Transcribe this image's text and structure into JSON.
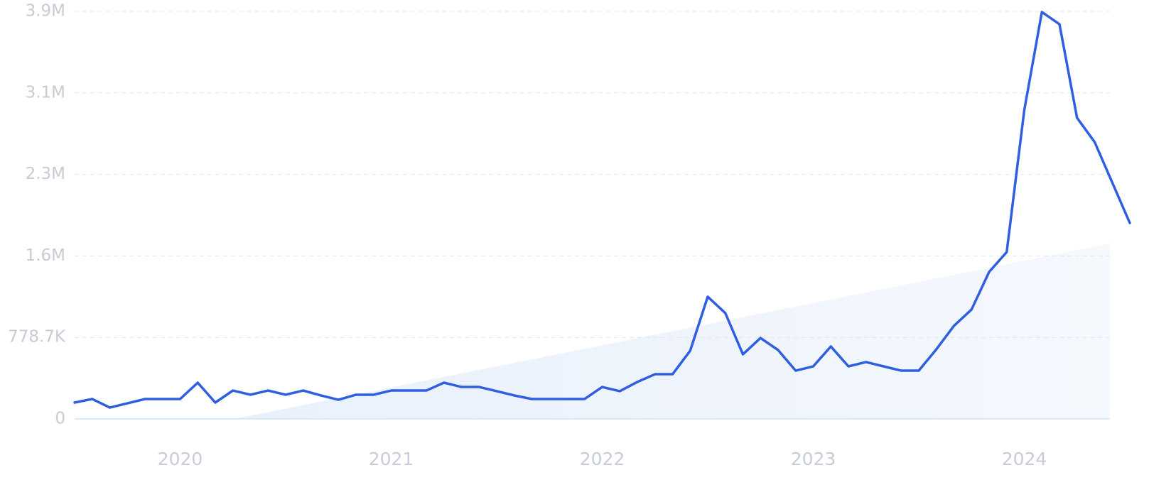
{
  "chart_data": {
    "type": "line",
    "categories": [
      null,
      null,
      null,
      null,
      null,
      null,
      "2020",
      null,
      null,
      null,
      null,
      null,
      null,
      null,
      null,
      null,
      null,
      null,
      "2021",
      null,
      null,
      null,
      null,
      null,
      null,
      null,
      null,
      null,
      null,
      null,
      "2022",
      null,
      null,
      null,
      null,
      null,
      null,
      null,
      null,
      null,
      null,
      null,
      "2023",
      null,
      null,
      null,
      null,
      null,
      null,
      null,
      null,
      null,
      null,
      null,
      "2024",
      null,
      null,
      null,
      null,
      null,
      null
    ],
    "series": [
      {
        "color": "#2f5fe0",
        "values": [
          156000,
          190000,
          108000,
          149000,
          190000,
          190000,
          190000,
          346000,
          156000,
          271000,
          231000,
          271000,
          231000,
          271000,
          224000,
          183000,
          231000,
          231000,
          271000,
          271000,
          271000,
          346000,
          305000,
          305000,
          265000,
          224000,
          190000,
          190000,
          190000,
          190000,
          305000,
          265000,
          353000,
          427000,
          427000,
          651000,
          1167000,
          1011000,
          617000,
          773000,
          658000,
          461000,
          502000,
          692000,
          502000,
          543000,
          502000,
          461000,
          461000,
          665000,
          889000,
          1045000,
          1404000,
          1594000,
          2951000,
          3887000,
          3771000,
          2876000,
          2645000,
          2259000,
          1872000
        ]
      }
    ],
    "ylim": [
      0,
      3893500
    ],
    "yticks": [
      0,
      {
        "value": 778700,
        "label": "778.7K"
      },
      {
        "value": 1557400,
        "label": "1.6M"
      },
      {
        "value": 2336100,
        "label": "2.3M"
      },
      {
        "value": 3114800,
        "label": "3.1M"
      },
      {
        "value": 3893500,
        "label": "3.9M"
      }
    ],
    "grid": true
  }
}
